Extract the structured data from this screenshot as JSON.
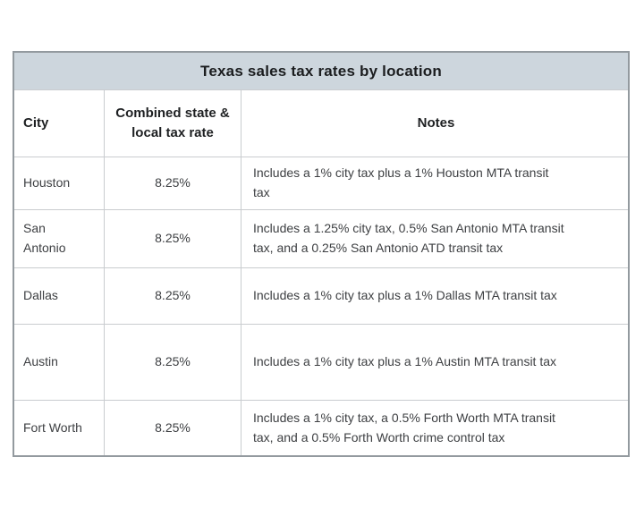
{
  "table": {
    "title": "Texas sales tax rates by location",
    "headers": {
      "city": "City",
      "rate": "Combined state & local tax rate",
      "notes": "Notes"
    },
    "rows": [
      {
        "city": "Houston",
        "rate": "8.25%",
        "notes": "Includes a 1% city tax plus a 1% Houston MTA transit\ntax"
      },
      {
        "city": "San\nAntonio",
        "rate": "8.25%",
        "notes": "Includes a 1.25% city tax, 0.5% San Antonio MTA transit\ntax, and a 0.25% San Antonio ATD transit tax"
      },
      {
        "city": "Dallas",
        "rate": "8.25%",
        "notes": "Includes a 1% city tax plus a 1% Dallas MTA transit tax"
      },
      {
        "city": "Austin",
        "rate": "8.25%",
        "notes": "Includes a 1% city tax plus a 1% Austin MTA transit tax"
      },
      {
        "city": "Fort Worth",
        "rate": "8.25%",
        "notes": "Includes a 1% city tax, a 0.5% Forth Worth MTA transit\ntax, and a 0.5% Forth Worth crime control tax"
      }
    ]
  },
  "colors": {
    "title_bar_background": "#cdd6dd",
    "outer_border": "#939a9f",
    "grid_line": "#c9cccf",
    "heading_text": "#1e2022",
    "body_text": "#3e4043",
    "page_background": "#ffffff"
  },
  "chart_data": {
    "type": "table",
    "title": "Texas sales tax rates by location",
    "columns": [
      "City",
      "Combined state & local tax rate",
      "Notes"
    ],
    "rows": [
      [
        "Houston",
        "8.25%",
        "Includes a 1% city tax plus a 1% Houston MTA transit tax"
      ],
      [
        "San Antonio",
        "8.25%",
        "Includes a 1.25% city tax, 0.5% San Antonio MTA transit tax, and a 0.25% San Antonio ATD transit tax"
      ],
      [
        "Dallas",
        "8.25%",
        "Includes a 1% city tax plus a 1% Dallas MTA transit tax"
      ],
      [
        "Austin",
        "8.25%",
        "Includes a 1% city tax plus a 1% Austin MTA transit tax"
      ],
      [
        "Fort Worth",
        "8.25%",
        "Includes a 1% city tax, a 0.5% Forth Worth MTA transit tax, and a 0.5% Forth Worth crime control tax"
      ]
    ],
    "layout": {
      "title_position": "top-banner",
      "grid": true,
      "rate_column_alignment": "center",
      "city_column_alignment": "left"
    }
  }
}
